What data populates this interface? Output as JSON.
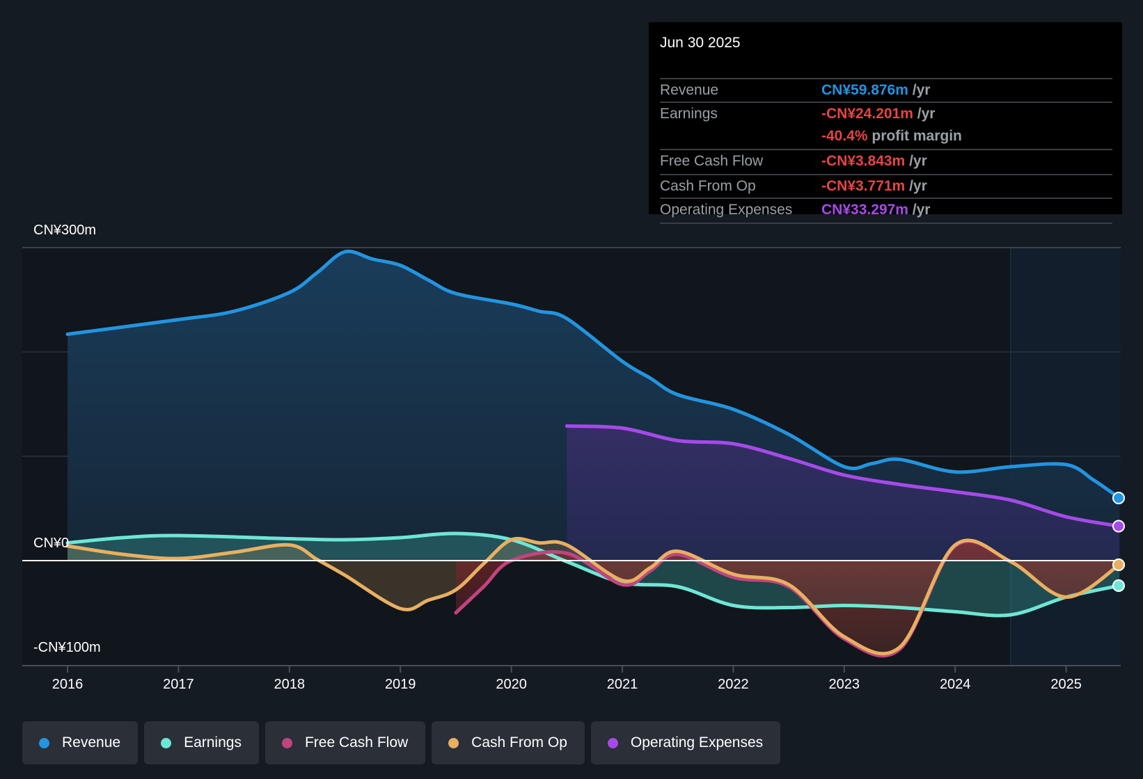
{
  "tooltip": {
    "date": "Jun 30 2025",
    "rows": [
      {
        "label": "Revenue",
        "value": "CN¥59.876m",
        "unit": " /yr",
        "color": "#2394df"
      },
      {
        "label": "Earnings",
        "value": "-CN¥24.201m",
        "unit": " /yr",
        "color": "#e64545"
      },
      {
        "label": "",
        "value": "-40.4%",
        "unit": " profit margin",
        "color": "#e64545"
      },
      {
        "label": "Free Cash Flow",
        "value": "-CN¥3.843m",
        "unit": " /yr",
        "color": "#e64545"
      },
      {
        "label": "Cash From Op",
        "value": "-CN¥3.771m",
        "unit": " /yr",
        "color": "#e64545"
      },
      {
        "label": "Operating Expenses",
        "value": "CN¥33.297m",
        "unit": " /yr",
        "color": "#a64ae8"
      }
    ]
  },
  "legend": [
    {
      "label": "Revenue",
      "color": "#2394df"
    },
    {
      "label": "Earnings",
      "color": "#6ee6d5"
    },
    {
      "label": "Free Cash Flow",
      "color": "#c0457f"
    },
    {
      "label": "Cash From Op",
      "color": "#e8b060"
    },
    {
      "label": "Operating Expenses",
      "color": "#a64ae8"
    }
  ],
  "chart_data": {
    "type": "area",
    "title": "",
    "xlabel": "",
    "ylabel": "",
    "unit": "CN¥ millions",
    "ylim": [
      -100,
      300
    ],
    "xlim": [
      2015.6,
      2025.48
    ],
    "y_tick_labels": [
      {
        "value": 300,
        "label": "CN¥300m"
      },
      {
        "value": 0,
        "label": "CN¥0"
      },
      {
        "value": -100,
        "label": "-CN¥100m"
      }
    ],
    "gridlines": [
      300,
      200,
      100
    ],
    "x_ticks": [
      2016,
      2017,
      2018,
      2019,
      2020,
      2021,
      2022,
      2023,
      2024,
      2025
    ],
    "forecast_region_start": 2024.5,
    "series": [
      {
        "name": "Revenue",
        "color": "#2394df",
        "x": [
          2016,
          2017,
          2017.5,
          2018,
          2018.25,
          2018.5,
          2018.75,
          2019,
          2019.25,
          2019.5,
          2020,
          2020.25,
          2020.5,
          2021,
          2021.25,
          2021.5,
          2022,
          2022.5,
          2023,
          2023.25,
          2023.5,
          2024,
          2024.5,
          2025,
          2025.25,
          2025.48
        ],
        "values": [
          217,
          231,
          239,
          257,
          276,
          296,
          289,
          283,
          269,
          256,
          246,
          239,
          232,
          191,
          175,
          159,
          145,
          121,
          90,
          93,
          97,
          85,
          90,
          92,
          77,
          60
        ]
      },
      {
        "name": "Operating Expenses",
        "color": "#a64ae8",
        "x": [
          2020.5,
          2021,
          2021.5,
          2022,
          2022.5,
          2023,
          2023.5,
          2024,
          2024.5,
          2025,
          2025.48
        ],
        "values": [
          129,
          127,
          115,
          112,
          98,
          82,
          73,
          66,
          58,
          42,
          33
        ]
      },
      {
        "name": "Earnings",
        "color": "#6ee6d5",
        "x": [
          2016,
          2016.5,
          2017,
          2018,
          2018.5,
          2019,
          2019.5,
          2020,
          2020.5,
          2021,
          2021.5,
          2022,
          2022.5,
          2023,
          2023.5,
          2024,
          2024.5,
          2025,
          2025.48
        ],
        "values": [
          17,
          22,
          24,
          21,
          20,
          22,
          26,
          20,
          -1,
          -21,
          -25,
          -43,
          -45,
          -43,
          -45,
          -49,
          -52,
          -35,
          -24
        ]
      },
      {
        "name": "Free Cash Flow",
        "color": "#c0457f",
        "x": [
          2019.5,
          2019.75,
          2020,
          2020.5,
          2021,
          2021.25,
          2021.5,
          2022,
          2022.5,
          2023,
          2023.5,
          2024,
          2024.5,
          2025,
          2025.48
        ],
        "values": [
          -50,
          -25,
          0,
          7,
          -23,
          -10,
          6,
          -16,
          -25,
          -75,
          -85,
          14,
          -1,
          -35,
          -4
        ]
      },
      {
        "name": "Cash From Op",
        "color": "#e8b060",
        "x": [
          2016,
          2016.5,
          2017,
          2017.5,
          2018,
          2018.25,
          2018.5,
          2019,
          2019.25,
          2019.5,
          2019.75,
          2020,
          2020.25,
          2020.5,
          2021,
          2021.25,
          2021.5,
          2022,
          2022.5,
          2023,
          2023.5,
          2024,
          2024.5,
          2025,
          2025.48
        ],
        "values": [
          14,
          6,
          2,
          8,
          15,
          1,
          -14,
          -46,
          -38,
          -28,
          -3,
          20,
          17,
          15,
          -19,
          -7,
          9,
          -13,
          -23,
          -73,
          -83,
          15,
          -1,
          -35,
          -4
        ]
      }
    ]
  }
}
